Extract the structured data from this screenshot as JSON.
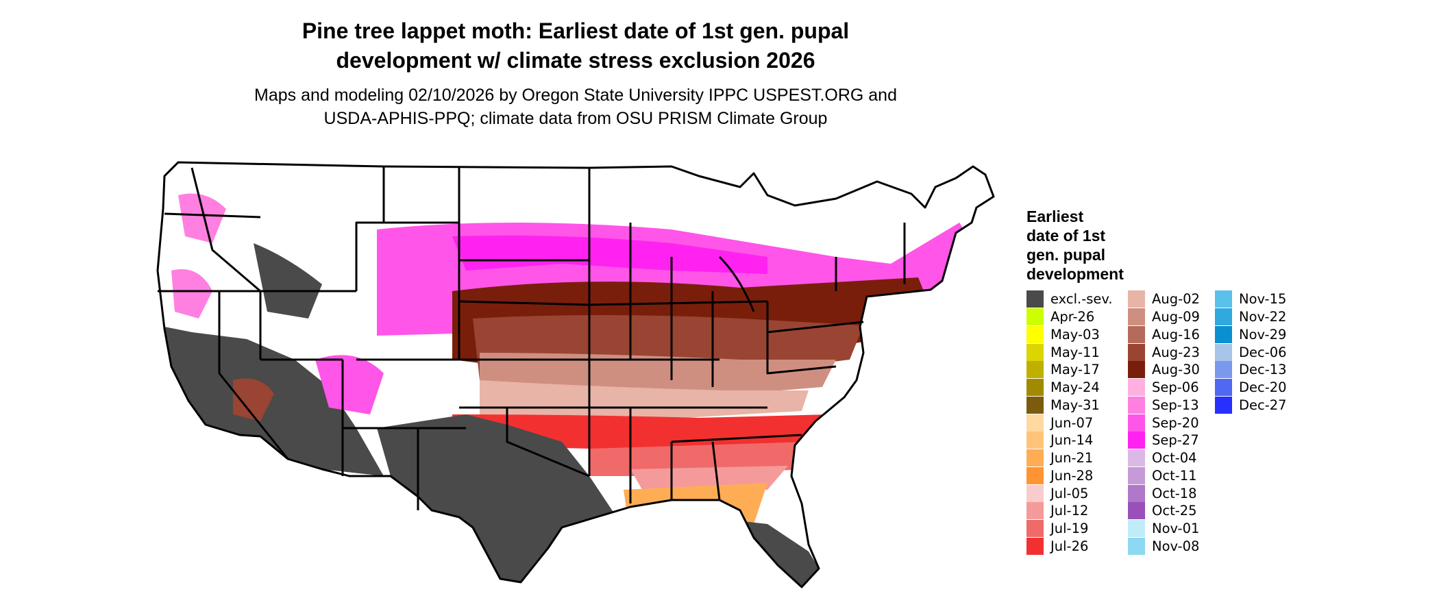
{
  "title_line1": "Pine tree lappet moth: Earliest date of 1st gen. pupal",
  "title_line2": "development w/ climate stress exclusion 2026",
  "subtitle_line1": "Maps and modeling 02/10/2026 by Oregon State University IPPC USPEST.ORG and",
  "subtitle_line2": "USDA-APHIS-PPQ; climate data from OSU PRISM Climate Group",
  "legend": {
    "title_lines": [
      "Earliest",
      "date of 1st",
      "gen. pupal",
      "development"
    ],
    "columns": [
      [
        {
          "label": "excl.-sev.",
          "color": "#4a4a4a"
        },
        {
          "label": "Apr-26",
          "color": "#ccff00"
        },
        {
          "label": "May-03",
          "color": "#ffff00"
        },
        {
          "label": "May-11",
          "color": "#dbd600"
        },
        {
          "label": "May-17",
          "color": "#bfb000"
        },
        {
          "label": "May-24",
          "color": "#a08a00"
        },
        {
          "label": "May-31",
          "color": "#7a5c0c"
        },
        {
          "label": "Jun-07",
          "color": "#ffd9a0"
        },
        {
          "label": "Jun-14",
          "color": "#ffc47a"
        },
        {
          "label": "Jun-21",
          "color": "#ffad55"
        },
        {
          "label": "Jun-28",
          "color": "#ff9433"
        },
        {
          "label": "Jul-05",
          "color": "#f8cccc"
        },
        {
          "label": "Jul-12",
          "color": "#f59a9a"
        },
        {
          "label": "Jul-19",
          "color": "#f06a6a"
        },
        {
          "label": "Jul-26",
          "color": "#f23030"
        }
      ],
      [
        {
          "label": "Aug-02",
          "color": "#e8b4a8"
        },
        {
          "label": "Aug-09",
          "color": "#cf8f80"
        },
        {
          "label": "Aug-16",
          "color": "#b46b5b"
        },
        {
          "label": "Aug-23",
          "color": "#9a4433"
        },
        {
          "label": "Aug-30",
          "color": "#7a1e0c"
        },
        {
          "label": "Sep-06",
          "color": "#ffb0e0"
        },
        {
          "label": "Sep-13",
          "color": "#ff80e0"
        },
        {
          "label": "Sep-20",
          "color": "#ff55e8"
        },
        {
          "label": "Sep-27",
          "color": "#ff22f0"
        },
        {
          "label": "Oct-04",
          "color": "#dcb8e6"
        },
        {
          "label": "Oct-11",
          "color": "#c59ad6"
        },
        {
          "label": "Oct-18",
          "color": "#b078c8"
        },
        {
          "label": "Oct-25",
          "color": "#9a50b8"
        },
        {
          "label": "Nov-01",
          "color": "#c0ecf8"
        },
        {
          "label": "Nov-08",
          "color": "#8ed8f2"
        }
      ],
      [
        {
          "label": "Nov-15",
          "color": "#5ac0ec"
        },
        {
          "label": "Nov-22",
          "color": "#30a8e0"
        },
        {
          "label": "Nov-29",
          "color": "#0a90d0"
        },
        {
          "label": "Dec-06",
          "color": "#a8c4e8"
        },
        {
          "label": "Dec-13",
          "color": "#7a98ec"
        },
        {
          "label": "Dec-20",
          "color": "#5068f2"
        },
        {
          "label": "Dec-27",
          "color": "#2630ff"
        }
      ]
    ]
  }
}
